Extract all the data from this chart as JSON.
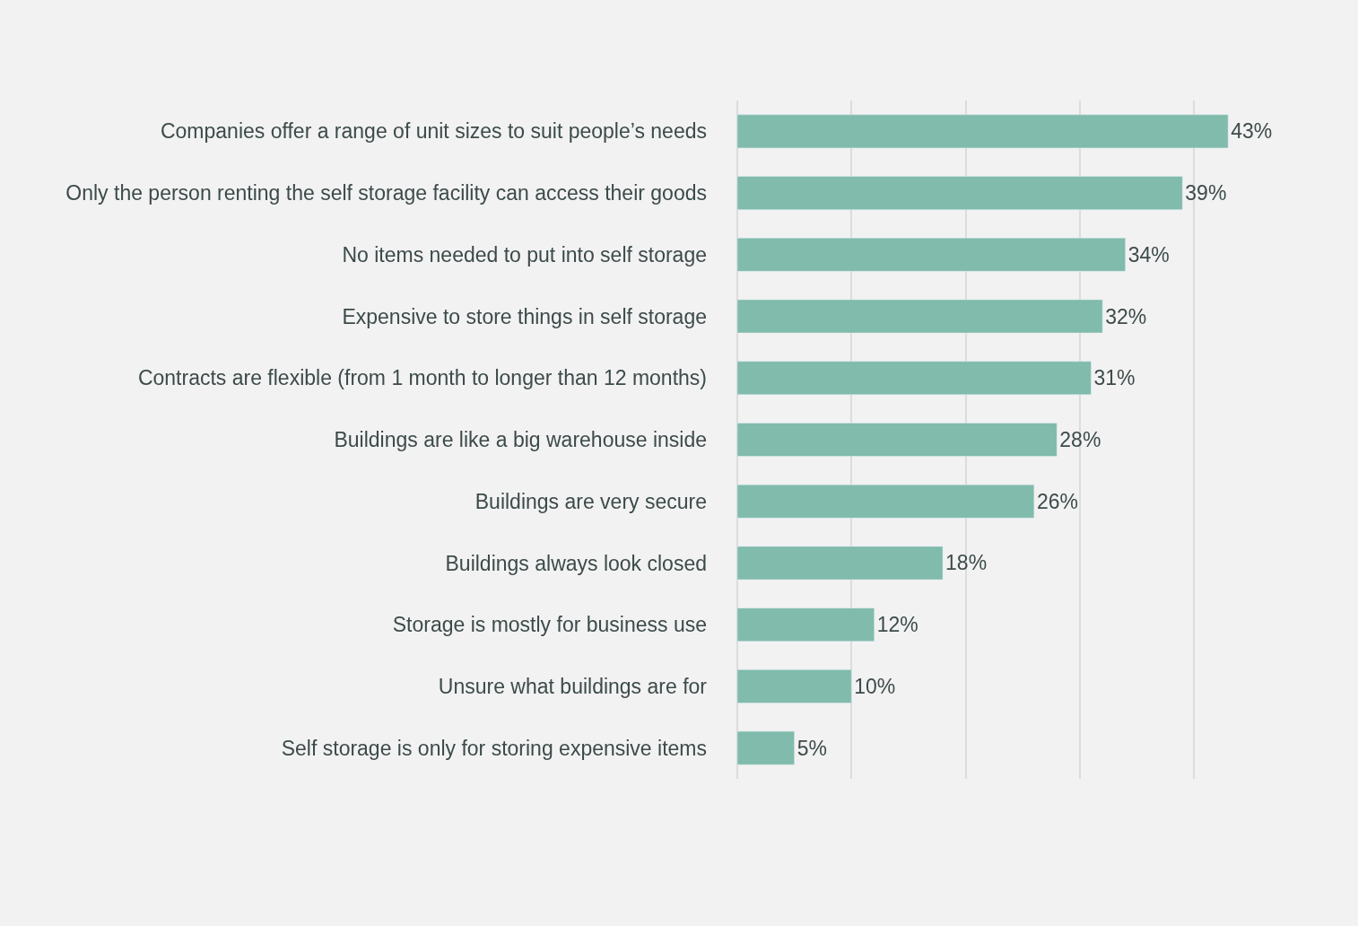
{
  "chart_data": {
    "type": "bar",
    "orientation": "horizontal",
    "categories": [
      "Companies offer a range of unit sizes to suit people’s needs",
      "Only the person renting the self storage facility can access their goods",
      "No items needed to put into self storage",
      "Expensive to store things in self storage",
      "Contracts are flexible (from 1 month to longer than 12 months)",
      "Buildings are like a big warehouse inside",
      "Buildings are very secure",
      "Buildings always look closed",
      "Storage is mostly for business use",
      "Unsure what buildings are for",
      "Self storage is only for storing expensive items"
    ],
    "values": [
      43,
      39,
      34,
      32,
      31,
      28,
      26,
      18,
      12,
      10,
      5
    ],
    "value_labels": [
      "43%",
      "39%",
      "34%",
      "32%",
      "31%",
      "28%",
      "26%",
      "18%",
      "12%",
      "10%",
      "5%"
    ],
    "color": "#80bbab",
    "grid": "x",
    "tick_labels": "y"
  }
}
